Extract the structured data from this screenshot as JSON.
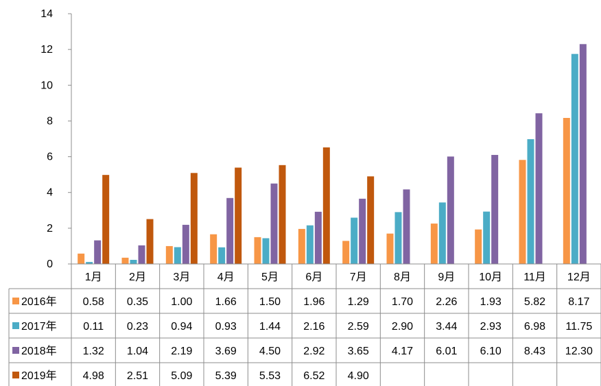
{
  "chart_data": {
    "type": "bar",
    "categories": [
      "1月",
      "2月",
      "3月",
      "4月",
      "5月",
      "6月",
      "7月",
      "8月",
      "9月",
      "10月",
      "11月",
      "12月"
    ],
    "series": [
      {
        "name": "2016年",
        "color": "#F79646",
        "values": [
          0.58,
          0.35,
          1.0,
          1.66,
          1.5,
          1.96,
          1.29,
          1.7,
          2.26,
          1.93,
          5.82,
          8.17
        ],
        "labels": [
          "0.58",
          "0.35",
          "1.00",
          "1.66",
          "1.50",
          "1.96",
          "1.29",
          "1.70",
          "2.26",
          "1.93",
          "5.82",
          "8.17"
        ]
      },
      {
        "name": "2017年",
        "color": "#4BACC6",
        "values": [
          0.11,
          0.23,
          0.94,
          0.93,
          1.44,
          2.16,
          2.59,
          2.9,
          3.44,
          2.93,
          6.98,
          11.75
        ],
        "labels": [
          "0.11",
          "0.23",
          "0.94",
          "0.93",
          "1.44",
          "2.16",
          "2.59",
          "2.90",
          "3.44",
          "2.93",
          "6.98",
          "11.75"
        ]
      },
      {
        "name": "2018年",
        "color": "#8064A2",
        "values": [
          1.32,
          1.04,
          2.19,
          3.69,
          4.5,
          2.92,
          3.65,
          4.17,
          6.01,
          6.1,
          8.43,
          12.3
        ],
        "labels": [
          "1.32",
          "1.04",
          "2.19",
          "3.69",
          "4.50",
          "2.92",
          "3.65",
          "4.17",
          "6.01",
          "6.10",
          "8.43",
          "12.30"
        ]
      },
      {
        "name": "2019年",
        "color": "#C0580D",
        "values": [
          4.98,
          2.51,
          5.09,
          5.39,
          5.53,
          6.52,
          4.9,
          null,
          null,
          null,
          null,
          null
        ],
        "labels": [
          "4.98",
          "2.51",
          "5.09",
          "5.39",
          "5.53",
          "6.52",
          "4.90",
          "",
          "",
          "",
          "",
          ""
        ]
      }
    ],
    "ylim": [
      0,
      14
    ],
    "yticks": [
      "0",
      "2",
      "4",
      "6",
      "8",
      "10",
      "12",
      "14"
    ],
    "title": "",
    "xlabel": "",
    "ylabel": "",
    "grid": false,
    "legend": "data-table"
  }
}
